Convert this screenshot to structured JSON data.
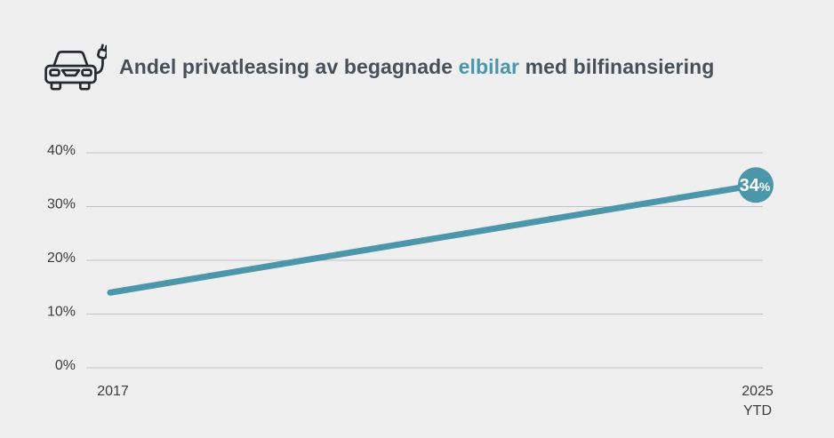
{
  "title": {
    "prefix": "Andel privatleasing av begagnade ",
    "highlight": "elbilar",
    "suffix": " med bilfinansiering"
  },
  "header_icon": "electric-car-with-charging-plug-icon",
  "colors": {
    "background": "#efeff0",
    "accent_teal": "#4b96a9",
    "title_text": "#47505a",
    "axis_text": "#3c3c3c",
    "gridline": "#c2c2c4",
    "badge_text": "#ffffff",
    "icon_stroke": "#26292d"
  },
  "chart_data": {
    "type": "line",
    "title": "Andel privatleasing av begagnade elbilar med bilfinansiering",
    "x": [
      "2017",
      "2025 YTD"
    ],
    "x_tick_labels": [
      "2017",
      "2025\nYTD"
    ],
    "series": [
      {
        "name": "Andel privatleasing av begagnade elbilar",
        "values": [
          14,
          34
        ]
      }
    ],
    "ylim": [
      0,
      40
    ],
    "yticks": [
      0,
      10,
      20,
      30,
      40
    ],
    "ytick_labels": [
      "0%",
      "10%",
      "20%",
      "30%",
      "40%"
    ],
    "grid": "horizontal",
    "legend_position": "none",
    "end_point_label": {
      "value": "34",
      "unit": "%"
    }
  }
}
